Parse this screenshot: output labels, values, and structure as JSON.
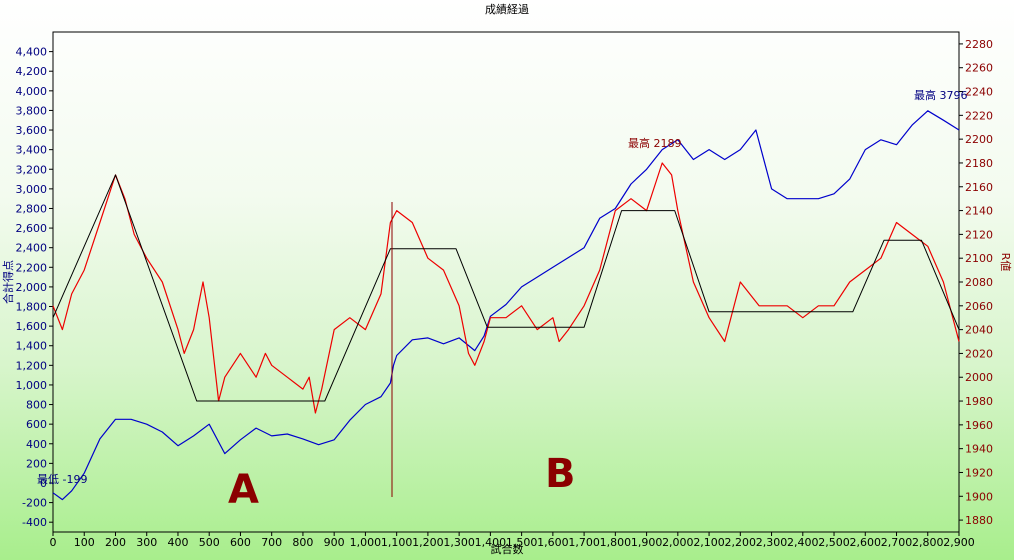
{
  "chart_data": {
    "type": "line",
    "title": "成績経過",
    "xlabel": "試合数",
    "ylabel_left": "合計得点",
    "ylabel_right": "R値",
    "xlim": [
      0,
      2900
    ],
    "ylim_left": [
      -500,
      4600
    ],
    "ylim_right": [
      1870,
      2290
    ],
    "x_ticks": [
      0,
      100,
      200,
      300,
      400,
      500,
      600,
      700,
      800,
      900,
      1000,
      1100,
      1200,
      1300,
      1400,
      1500,
      1600,
      1700,
      1800,
      1900,
      2000,
      2100,
      2200,
      2300,
      2400,
      2500,
      2600,
      2700,
      2800,
      2900
    ],
    "x_tick_labels": [
      "0",
      "100",
      "200",
      "300",
      "400",
      "500",
      "600",
      "700",
      "800",
      "900",
      "1,000",
      "1,100",
      "1,200",
      "1,300",
      "1,400",
      "1,500",
      "1,600",
      "1,700",
      "1,800",
      "1,900",
      "2,000",
      "2,100",
      "2,200",
      "2,300",
      "2,400",
      "2,500",
      "2,600",
      "2,700",
      "2,800",
      "2,900"
    ],
    "y_left_ticks": [
      -400,
      -200,
      0,
      200,
      400,
      600,
      800,
      1000,
      1200,
      1400,
      1600,
      1800,
      2000,
      2200,
      2400,
      2600,
      2800,
      3000,
      3200,
      3400,
      3600,
      3800,
      4000,
      4200,
      4400
    ],
    "y_left_tick_labels": [
      "-400",
      "-200",
      "0",
      "200",
      "400",
      "600",
      "800",
      "1,000",
      "1,200",
      "1,400",
      "1,600",
      "1,800",
      "2,000",
      "2,200",
      "2,400",
      "2,600",
      "2,800",
      "3,000",
      "3,200",
      "3,400",
      "3,600",
      "3,800",
      "4,000",
      "4,200",
      "4,400"
    ],
    "y_right_ticks": [
      1880,
      1900,
      1920,
      1940,
      1960,
      1980,
      2000,
      2020,
      2040,
      2060,
      2080,
      2100,
      2120,
      2140,
      2160,
      2180,
      2200,
      2220,
      2240,
      2260,
      2280
    ],
    "series": [
      {
        "axis": "left",
        "color": "#0000cc",
        "x": [
          0,
          30,
          60,
          100,
          150,
          200,
          250,
          300,
          350,
          400,
          450,
          500,
          550,
          600,
          650,
          700,
          750,
          800,
          850,
          900,
          950,
          1000,
          1050,
          1080,
          1090,
          1100,
          1150,
          1200,
          1250,
          1300,
          1350,
          1380,
          1400,
          1450,
          1500,
          1550,
          1600,
          1650,
          1700,
          1750,
          1800,
          1850,
          1900,
          1950,
          2000,
          2050,
          2100,
          2150,
          2200,
          2250,
          2300,
          2350,
          2400,
          2450,
          2500,
          2550,
          2600,
          2650,
          2700,
          2750,
          2800,
          2850,
          2900
        ],
        "values": [
          -100,
          -170,
          -80,
          100,
          450,
          650,
          650,
          600,
          520,
          380,
          480,
          600,
          300,
          440,
          560,
          480,
          500,
          450,
          390,
          440,
          640,
          800,
          880,
          1020,
          1200,
          1300,
          1460,
          1480,
          1420,
          1480,
          1350,
          1500,
          1700,
          1820,
          2000,
          2100,
          2200,
          2300,
          2400,
          2700,
          2800,
          3050,
          3200,
          3400,
          3500,
          3300,
          3400,
          3300,
          3400,
          3600,
          3000,
          2900,
          2900,
          2900,
          2950,
          3100,
          3400,
          3500,
          3450,
          3650,
          3796,
          3700,
          3600
        ]
      },
      {
        "axis": "right",
        "color": "#ee0000",
        "x": [
          0,
          30,
          60,
          100,
          150,
          200,
          230,
          260,
          300,
          350,
          400,
          420,
          450,
          480,
          500,
          530,
          550,
          600,
          650,
          680,
          700,
          750,
          800,
          820,
          840,
          860,
          900,
          950,
          1000,
          1050,
          1080,
          1100,
          1150,
          1200,
          1250,
          1300,
          1330,
          1350,
          1380,
          1400,
          1450,
          1500,
          1550,
          1600,
          1620,
          1650,
          1700,
          1750,
          1800,
          1850,
          1900,
          1950,
          1980,
          2000,
          2050,
          2100,
          2150,
          2200,
          2230,
          2260,
          2300,
          2350,
          2400,
          2450,
          2500,
          2550,
          2600,
          2650,
          2700,
          2750,
          2800,
          2850,
          2900
        ],
        "values": [
          2060,
          2040,
          2070,
          2090,
          2130,
          2170,
          2150,
          2120,
          2100,
          2080,
          2040,
          2020,
          2040,
          2080,
          2050,
          1980,
          2000,
          2020,
          2000,
          2020,
          2010,
          2000,
          1990,
          2000,
          1970,
          1990,
          2040,
          2050,
          2040,
          2070,
          2130,
          2140,
          2130,
          2100,
          2090,
          2060,
          2020,
          2010,
          2030,
          2050,
          2050,
          2060,
          2040,
          2050,
          2030,
          2040,
          2060,
          2090,
          2140,
          2150,
          2140,
          2180,
          2170,
          2140,
          2080,
          2050,
          2030,
          2080,
          2070,
          2060,
          2060,
          2060,
          2050,
          2060,
          2060,
          2080,
          2090,
          2100,
          2130,
          2120,
          2110,
          2080,
          2030
        ]
      },
      {
        "axis": "right",
        "color": "#000000",
        "x": [
          0,
          200,
          460,
          720,
          870,
          1080,
          1290,
          1390,
          1700,
          1820,
          1990,
          2100,
          2560,
          2660,
          2780,
          2900
        ],
        "values": [
          2050,
          2170,
          1980,
          1980,
          1980,
          2108,
          2108,
          2042,
          2042,
          2140,
          2140,
          2055,
          2055,
          2115,
          2115,
          2040
        ]
      }
    ],
    "annotations": {
      "max_left": "最高 3796",
      "min_left": "最低 -199",
      "max_right": "最高 2189",
      "label_a": "A",
      "label_b": "B"
    }
  }
}
